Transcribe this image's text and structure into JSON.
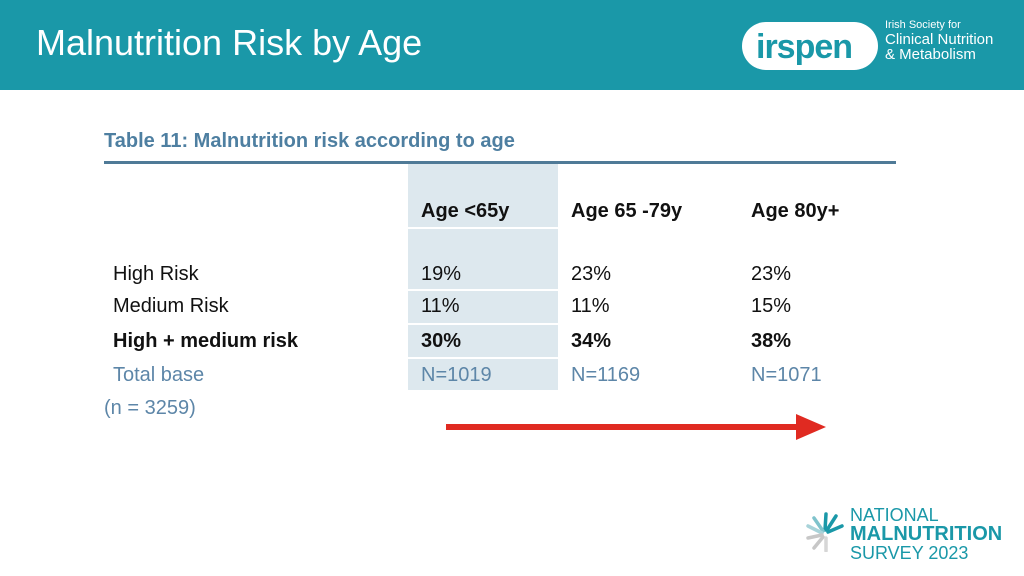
{
  "header": {
    "title": "Malnutrition Risk by Age",
    "logo": {
      "mark": "irspen",
      "org_line1": "Irish Society for",
      "org_line2": "Clinical Nutrition",
      "org_line3": "& Metabolism"
    }
  },
  "table": {
    "caption": "Table 11: Malnutrition risk according to age",
    "columns": [
      "Age <65y",
      "Age 65 -79y",
      "Age 80y+"
    ],
    "rows": [
      {
        "label": "High Risk",
        "values": [
          "19%",
          "23%",
          "23%"
        ]
      },
      {
        "label": "Medium Risk",
        "values": [
          "11%",
          "11%",
          "15%"
        ]
      },
      {
        "label": "High + medium risk",
        "values": [
          "30%",
          "34%",
          "38%"
        ]
      },
      {
        "label": "Total base",
        "values": [
          "N=1019",
          "N=1169",
          "N=1071"
        ]
      }
    ],
    "total_note": "(n = 3259)"
  },
  "footer_logo": {
    "line1": "NATIONAL",
    "line2": "MALNUTRITION",
    "line3": "SURVEY 2023"
  },
  "colors": {
    "header_bg": "#1a98a8",
    "caption": "#4e7fa1",
    "arrow": "#e02a21",
    "highlight": "#dde8ee"
  }
}
